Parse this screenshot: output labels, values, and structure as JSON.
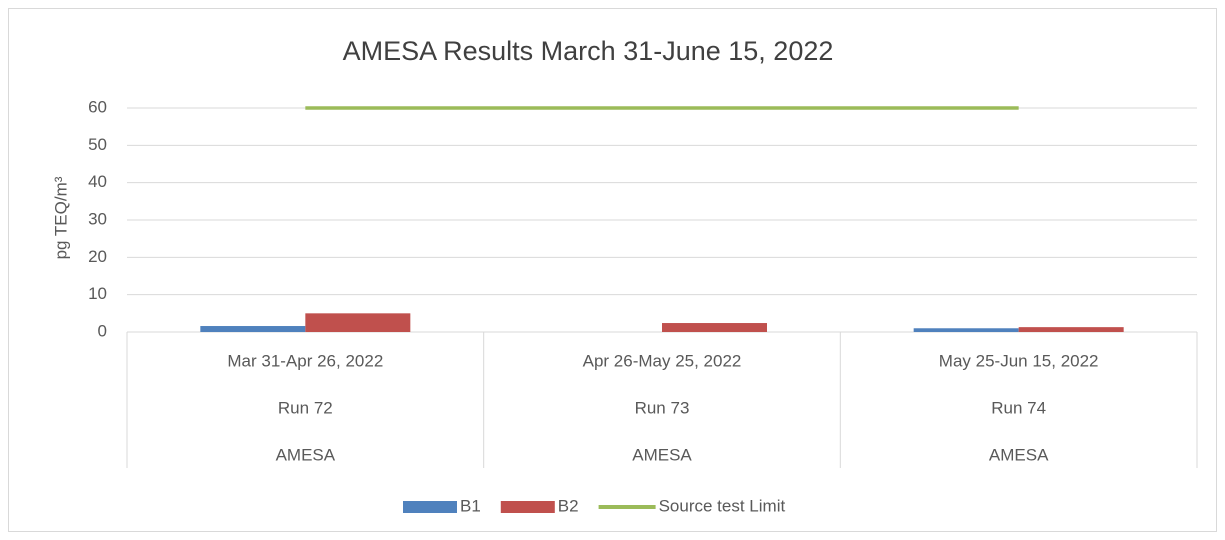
{
  "chart_data": {
    "type": "bar",
    "title": "AMESA Results March 31-June 15, 2022",
    "y_label": "pg TEQ/m³",
    "categories": [
      [
        "Mar 31-Apr 26, 2022",
        "Run 72",
        "AMESA"
      ],
      [
        "Apr 26-May 25, 2022",
        "Run 73",
        "AMESA"
      ],
      [
        "May 25-Jun 15, 2022",
        "Run 74",
        "AMESA"
      ]
    ],
    "series": [
      {
        "name": "B1",
        "type": "bar",
        "color": "#4f81bd",
        "values": [
          1.6,
          null,
          1.0
        ]
      },
      {
        "name": "B2",
        "type": "bar",
        "color": "#c0504d",
        "values": [
          5.0,
          2.4,
          1.3
        ]
      },
      {
        "name": "Source test Limit",
        "type": "line",
        "color": "#9bbb59",
        "values": [
          60,
          60,
          60
        ]
      }
    ],
    "ylim": [
      0,
      60
    ],
    "yticks": [
      0,
      10,
      20,
      30,
      40,
      50,
      60
    ],
    "grid": true,
    "legend": "bottom"
  }
}
